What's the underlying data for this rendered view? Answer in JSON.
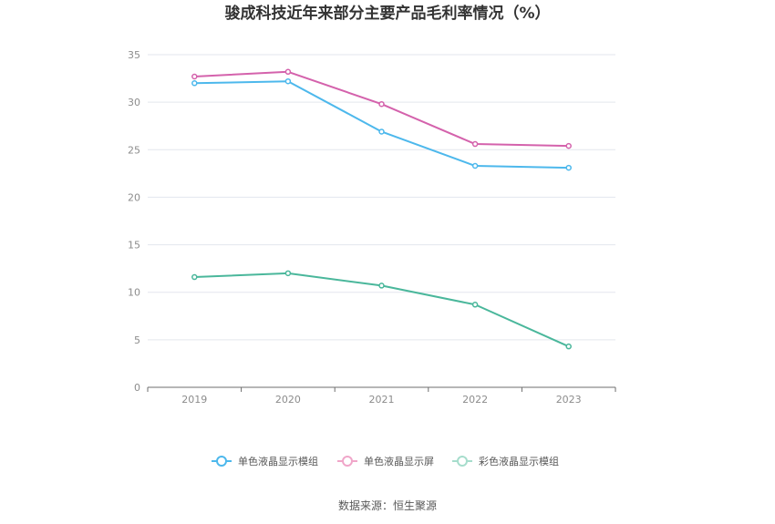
{
  "chart_data": {
    "type": "line",
    "title": "骏成科技近年来部分主要产品毛利率情况（%）",
    "categories": [
      "2019",
      "2020",
      "2021",
      "2022",
      "2023"
    ],
    "ylim": [
      0,
      35
    ],
    "yticks": [
      0,
      5,
      10,
      15,
      20,
      25,
      30,
      35
    ],
    "series": [
      {
        "name": "单色液晶显示模组",
        "color": "#4db8ec",
        "values": [
          32.0,
          32.2,
          26.9,
          23.3,
          23.1
        ]
      },
      {
        "name": "单色液晶显示屏",
        "color": "#d462ac",
        "values": [
          32.7,
          33.2,
          29.8,
          25.6,
          25.4
        ]
      },
      {
        "name": "彩色液晶显示模组",
        "color": "#4ab79b",
        "values": [
          11.6,
          12.0,
          10.7,
          8.7,
          4.3
        ]
      }
    ],
    "legend_position": "bottom"
  },
  "source": "数据来源：恒生聚源"
}
